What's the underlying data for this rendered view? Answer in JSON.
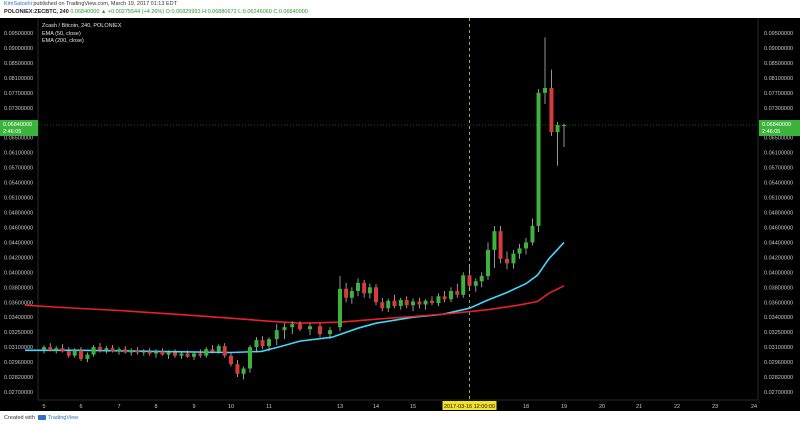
{
  "header": {
    "author": "KimSatoshi",
    "published_text": "published on TradingView.com, March 19, 2017 01:13 EDT",
    "symbol_line": "POLONIEX:ZECBTC, 240",
    "ohlc_text": "0.06840000 ▲ +0.00275544 (+4.26%) O:0.06829993 H:0.06880672 L:0.06246060 C:0.06840000"
  },
  "chart_data": {
    "type": "candlestick",
    "title": "Zcash / Bitcoin, 240, POLONIEX",
    "legend": [
      "EMA (50, close)",
      "EMA (200, close)"
    ],
    "y_ticks": [
      0.095,
      0.09,
      0.085,
      0.081,
      0.077,
      0.073,
      0.069,
      0.065,
      0.061,
      0.057,
      0.054,
      0.051,
      0.048,
      0.046,
      0.044,
      0.042,
      0.04,
      0.038,
      0.036,
      0.034,
      0.0325,
      0.031,
      0.0296,
      0.0282,
      0.027
    ],
    "y_tick_labels": [
      "0.09500000",
      "0.09000000",
      "0.08500000",
      "0.08100000",
      "0.07700000",
      "0.07300000",
      "0.06900000",
      "0.06500000",
      "0.06100000",
      "0.05700000",
      "0.05400000",
      "0.05100000",
      "0.04800000",
      "0.04600000",
      "0.04400000",
      "0.04200000",
      "0.04000000",
      "0.03800000",
      "0.03600000",
      "0.03400000",
      "0.03250000",
      "0.03100000",
      "0.02960000",
      "0.02820000",
      "0.02700000"
    ],
    "x_ticks": [
      {
        "label": "5",
        "x": 5
      },
      {
        "label": "6",
        "x": 6
      },
      {
        "label": "7",
        "x": 7
      },
      {
        "label": "8",
        "x": 8
      },
      {
        "label": "9",
        "x": 9
      },
      {
        "label": "10",
        "x": 10
      },
      {
        "label": "11",
        "x": 11
      },
      {
        "label": "13",
        "x": 13
      },
      {
        "label": "14",
        "x": 14
      },
      {
        "label": "15",
        "x": 15
      },
      {
        "label": "2017-03-16  12:00:00",
        "x": 16.5,
        "highlight": true
      },
      {
        "label": "18",
        "x": 18
      },
      {
        "label": "19",
        "x": 19
      },
      {
        "label": "20",
        "x": 20
      },
      {
        "label": "21",
        "x": 21
      },
      {
        "label": "22",
        "x": 22
      },
      {
        "label": "23",
        "x": 23
      },
      {
        "label": "24",
        "x": 24
      }
    ],
    "crosshair_x": 16.5,
    "current_price_label": "0.06840000",
    "countdown_label": "2:46:05",
    "current_price": 0.0684,
    "candles": [
      {
        "x": 5.0,
        "o": 0.0308,
        "h": 0.0312,
        "l": 0.0304,
        "c": 0.031
      },
      {
        "x": 5.17,
        "o": 0.031,
        "h": 0.0314,
        "l": 0.0306,
        "c": 0.0307
      },
      {
        "x": 5.33,
        "o": 0.0307,
        "h": 0.0311,
        "l": 0.0304,
        "c": 0.0309
      },
      {
        "x": 5.5,
        "o": 0.0309,
        "h": 0.0313,
        "l": 0.0305,
        "c": 0.0306
      },
      {
        "x": 5.67,
        "o": 0.0306,
        "h": 0.031,
        "l": 0.03,
        "c": 0.0302
      },
      {
        "x": 5.83,
        "o": 0.0302,
        "h": 0.0309,
        "l": 0.03,
        "c": 0.0307
      },
      {
        "x": 6.0,
        "o": 0.0307,
        "h": 0.031,
        "l": 0.0297,
        "c": 0.0299
      },
      {
        "x": 6.17,
        "o": 0.0299,
        "h": 0.0305,
        "l": 0.0296,
        "c": 0.0303
      },
      {
        "x": 6.33,
        "o": 0.0303,
        "h": 0.0312,
        "l": 0.0301,
        "c": 0.031
      },
      {
        "x": 6.5,
        "o": 0.031,
        "h": 0.0314,
        "l": 0.0305,
        "c": 0.0307
      },
      {
        "x": 6.67,
        "o": 0.0307,
        "h": 0.0311,
        "l": 0.0304,
        "c": 0.0309
      },
      {
        "x": 6.83,
        "o": 0.0309,
        "h": 0.0312,
        "l": 0.0305,
        "c": 0.0306
      },
      {
        "x": 7.0,
        "o": 0.0306,
        "h": 0.031,
        "l": 0.0303,
        "c": 0.0308
      },
      {
        "x": 7.17,
        "o": 0.0308,
        "h": 0.0311,
        "l": 0.0304,
        "c": 0.0305
      },
      {
        "x": 7.33,
        "o": 0.0305,
        "h": 0.0309,
        "l": 0.0302,
        "c": 0.0307
      },
      {
        "x": 7.5,
        "o": 0.0307,
        "h": 0.031,
        "l": 0.0303,
        "c": 0.0305
      },
      {
        "x": 7.67,
        "o": 0.0305,
        "h": 0.0308,
        "l": 0.0302,
        "c": 0.0306
      },
      {
        "x": 7.83,
        "o": 0.0306,
        "h": 0.0309,
        "l": 0.0302,
        "c": 0.0304
      },
      {
        "x": 8.0,
        "o": 0.0304,
        "h": 0.0308,
        "l": 0.03,
        "c": 0.0306
      },
      {
        "x": 8.17,
        "o": 0.0306,
        "h": 0.0309,
        "l": 0.0302,
        "c": 0.0303
      },
      {
        "x": 8.33,
        "o": 0.0303,
        "h": 0.0307,
        "l": 0.0299,
        "c": 0.0305
      },
      {
        "x": 8.5,
        "o": 0.0305,
        "h": 0.0308,
        "l": 0.03,
        "c": 0.0302
      },
      {
        "x": 8.67,
        "o": 0.0302,
        "h": 0.0306,
        "l": 0.0299,
        "c": 0.0304
      },
      {
        "x": 8.83,
        "o": 0.0304,
        "h": 0.0307,
        "l": 0.03,
        "c": 0.0301
      },
      {
        "x": 9.0,
        "o": 0.0301,
        "h": 0.0306,
        "l": 0.0298,
        "c": 0.0304
      },
      {
        "x": 9.17,
        "o": 0.0304,
        "h": 0.0308,
        "l": 0.03,
        "c": 0.0302
      },
      {
        "x": 9.33,
        "o": 0.0302,
        "h": 0.031,
        "l": 0.03,
        "c": 0.0308
      },
      {
        "x": 9.5,
        "o": 0.0308,
        "h": 0.0312,
        "l": 0.0304,
        "c": 0.0306
      },
      {
        "x": 9.67,
        "o": 0.0306,
        "h": 0.0313,
        "l": 0.0304,
        "c": 0.0311
      },
      {
        "x": 9.83,
        "o": 0.0311,
        "h": 0.0314,
        "l": 0.03,
        "c": 0.0302
      },
      {
        "x": 10.0,
        "o": 0.0302,
        "h": 0.0305,
        "l": 0.0292,
        "c": 0.0294
      },
      {
        "x": 10.17,
        "o": 0.0294,
        "h": 0.0298,
        "l": 0.0282,
        "c": 0.0285
      },
      {
        "x": 10.33,
        "o": 0.0285,
        "h": 0.0292,
        "l": 0.028,
        "c": 0.029
      },
      {
        "x": 10.5,
        "o": 0.029,
        "h": 0.0312,
        "l": 0.0286,
        "c": 0.031
      },
      {
        "x": 10.67,
        "o": 0.031,
        "h": 0.032,
        "l": 0.0305,
        "c": 0.0317
      },
      {
        "x": 10.83,
        "o": 0.0317,
        "h": 0.0321,
        "l": 0.0308,
        "c": 0.0311
      },
      {
        "x": 11.0,
        "o": 0.0311,
        "h": 0.032,
        "l": 0.0306,
        "c": 0.0318
      },
      {
        "x": 11.25,
        "o": 0.0318,
        "h": 0.0333,
        "l": 0.0312,
        "c": 0.0327
      },
      {
        "x": 11.5,
        "o": 0.0327,
        "h": 0.0334,
        "l": 0.0318,
        "c": 0.033
      },
      {
        "x": 11.75,
        "o": 0.033,
        "h": 0.0336,
        "l": 0.0323,
        "c": 0.0333
      },
      {
        "x": 12.0,
        "o": 0.0333,
        "h": 0.0336,
        "l": 0.0326,
        "c": 0.0328
      },
      {
        "x": 12.25,
        "o": 0.0328,
        "h": 0.0334,
        "l": 0.0322,
        "c": 0.0331
      },
      {
        "x": 12.5,
        "o": 0.0331,
        "h": 0.0334,
        "l": 0.032,
        "c": 0.0323
      },
      {
        "x": 12.75,
        "o": 0.0323,
        "h": 0.033,
        "l": 0.0318,
        "c": 0.0327
      },
      {
        "x": 13.0,
        "o": 0.033,
        "h": 0.0395,
        "l": 0.0326,
        "c": 0.0378
      },
      {
        "x": 13.17,
        "o": 0.0378,
        "h": 0.0386,
        "l": 0.036,
        "c": 0.0366
      },
      {
        "x": 13.33,
        "o": 0.0366,
        "h": 0.038,
        "l": 0.0358,
        "c": 0.0375
      },
      {
        "x": 13.5,
        "o": 0.0375,
        "h": 0.0392,
        "l": 0.0368,
        "c": 0.0386
      },
      {
        "x": 13.67,
        "o": 0.0386,
        "h": 0.039,
        "l": 0.0366,
        "c": 0.0372
      },
      {
        "x": 13.83,
        "o": 0.0372,
        "h": 0.0385,
        "l": 0.0365,
        "c": 0.038
      },
      {
        "x": 14.0,
        "o": 0.038,
        "h": 0.0384,
        "l": 0.0356,
        "c": 0.036
      },
      {
        "x": 14.17,
        "o": 0.036,
        "h": 0.0366,
        "l": 0.0348,
        "c": 0.0352
      },
      {
        "x": 14.33,
        "o": 0.0352,
        "h": 0.0365,
        "l": 0.0347,
        "c": 0.0362
      },
      {
        "x": 14.5,
        "o": 0.0362,
        "h": 0.037,
        "l": 0.0352,
        "c": 0.0355
      },
      {
        "x": 14.67,
        "o": 0.0355,
        "h": 0.0366,
        "l": 0.035,
        "c": 0.0363
      },
      {
        "x": 14.83,
        "o": 0.0363,
        "h": 0.0368,
        "l": 0.0352,
        "c": 0.0356
      },
      {
        "x": 15.0,
        "o": 0.0356,
        "h": 0.0365,
        "l": 0.0348,
        "c": 0.0361
      },
      {
        "x": 15.17,
        "o": 0.0361,
        "h": 0.0366,
        "l": 0.0352,
        "c": 0.0357
      },
      {
        "x": 15.33,
        "o": 0.0357,
        "h": 0.0364,
        "l": 0.035,
        "c": 0.0362
      },
      {
        "x": 15.5,
        "o": 0.0362,
        "h": 0.0368,
        "l": 0.0356,
        "c": 0.0359
      },
      {
        "x": 15.67,
        "o": 0.0359,
        "h": 0.0372,
        "l": 0.0355,
        "c": 0.0368
      },
      {
        "x": 15.83,
        "o": 0.0368,
        "h": 0.0375,
        "l": 0.036,
        "c": 0.0364
      },
      {
        "x": 16.0,
        "o": 0.0364,
        "h": 0.038,
        "l": 0.036,
        "c": 0.0375
      },
      {
        "x": 16.17,
        "o": 0.0375,
        "h": 0.0385,
        "l": 0.0366,
        "c": 0.037
      },
      {
        "x": 16.33,
        "o": 0.037,
        "h": 0.04,
        "l": 0.0366,
        "c": 0.0396
      },
      {
        "x": 16.5,
        "o": 0.0396,
        "h": 0.041,
        "l": 0.0376,
        "c": 0.0382
      },
      {
        "x": 16.67,
        "o": 0.0382,
        "h": 0.0392,
        "l": 0.0374,
        "c": 0.0388
      },
      {
        "x": 16.83,
        "o": 0.0388,
        "h": 0.04,
        "l": 0.038,
        "c": 0.0395
      },
      {
        "x": 17.0,
        "o": 0.0395,
        "h": 0.044,
        "l": 0.039,
        "c": 0.043
      },
      {
        "x": 17.17,
        "o": 0.043,
        "h": 0.0462,
        "l": 0.0406,
        "c": 0.0455
      },
      {
        "x": 17.33,
        "o": 0.0455,
        "h": 0.0462,
        "l": 0.0412,
        "c": 0.0418
      },
      {
        "x": 17.5,
        "o": 0.0418,
        "h": 0.0428,
        "l": 0.0404,
        "c": 0.0412
      },
      {
        "x": 17.67,
        "o": 0.0412,
        "h": 0.043,
        "l": 0.0405,
        "c": 0.0425
      },
      {
        "x": 17.83,
        "o": 0.0425,
        "h": 0.0438,
        "l": 0.0418,
        "c": 0.0432
      },
      {
        "x": 18.0,
        "o": 0.0432,
        "h": 0.0446,
        "l": 0.0424,
        "c": 0.044
      },
      {
        "x": 18.17,
        "o": 0.044,
        "h": 0.0472,
        "l": 0.0436,
        "c": 0.0462
      },
      {
        "x": 18.33,
        "o": 0.0462,
        "h": 0.078,
        "l": 0.0454,
        "c": 0.077
      },
      {
        "x": 18.5,
        "o": 0.077,
        "h": 0.0935,
        "l": 0.074,
        "c": 0.0783
      },
      {
        "x": 18.67,
        "o": 0.0783,
        "h": 0.0832,
        "l": 0.0655,
        "c": 0.0665
      },
      {
        "x": 18.83,
        "o": 0.0665,
        "h": 0.0692,
        "l": 0.0575,
        "c": 0.0684
      },
      {
        "x": 19.0,
        "o": 0.0683,
        "h": 0.0688,
        "l": 0.0625,
        "c": 0.0684
      }
    ],
    "series": [
      {
        "name": "EMA (50, close)",
        "color": "#3fd8ff",
        "points": [
          [
            4.5,
            0.0307
          ],
          [
            6.0,
            0.0307
          ],
          [
            8.0,
            0.0306
          ],
          [
            10.0,
            0.0305
          ],
          [
            10.8,
            0.0306
          ],
          [
            11.3,
            0.031
          ],
          [
            12.0,
            0.0316
          ],
          [
            12.8,
            0.032
          ],
          [
            13.5,
            0.0329
          ],
          [
            14.0,
            0.0334
          ],
          [
            15.0,
            0.034
          ],
          [
            15.8,
            0.0344
          ],
          [
            16.5,
            0.0352
          ],
          [
            17.0,
            0.0363
          ],
          [
            17.5,
            0.0373
          ],
          [
            18.0,
            0.0385
          ],
          [
            18.3,
            0.0396
          ],
          [
            18.6,
            0.0418
          ],
          [
            19.0,
            0.044
          ]
        ]
      },
      {
        "name": "EMA (200, close)",
        "color": "#e8202a",
        "points": [
          [
            4.5,
            0.0356
          ],
          [
            5.5,
            0.0353
          ],
          [
            7.0,
            0.0349
          ],
          [
            8.5,
            0.0344
          ],
          [
            10.0,
            0.0339
          ],
          [
            11.0,
            0.0336
          ],
          [
            12.0,
            0.0334
          ],
          [
            13.0,
            0.0335
          ],
          [
            14.0,
            0.0338
          ],
          [
            15.0,
            0.0341
          ],
          [
            16.0,
            0.0345
          ],
          [
            17.0,
            0.035
          ],
          [
            17.8,
            0.0356
          ],
          [
            18.3,
            0.0361
          ],
          [
            18.6,
            0.0372
          ],
          [
            19.0,
            0.0382
          ]
        ]
      }
    ],
    "colors": {
      "up": "#3cb43c",
      "down": "#d93a3a",
      "background": "#000000",
      "crosshair": "#d8d04a",
      "price_label_bg": "#3cb43c",
      "axis_text": "#c8c8c8"
    }
  },
  "footer": {
    "credit": "Created with",
    "brand": "TradingView"
  }
}
